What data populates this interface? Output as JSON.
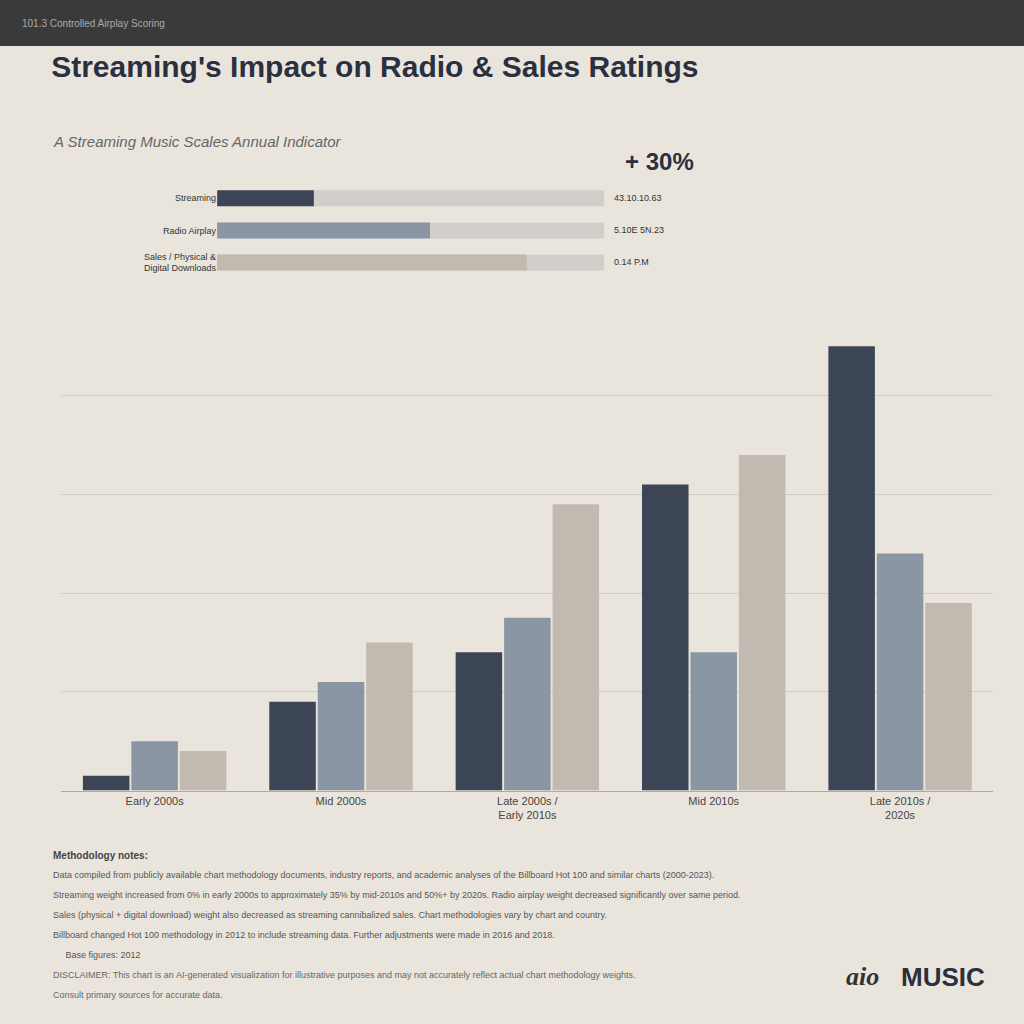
{
  "chart_data": [
    {
      "type": "bar",
      "title": "Streaming's Impact on Radio & Sales Ratings",
      "subtitle": "A Streaming Music Scales Annual Indicator",
      "categories": [
        "Early 2000s",
        "Mid 2000s",
        "Late 2000s /\nEarly 2010s",
        "Mid 2010s",
        "Late 2010s /\n2020s"
      ],
      "series": [
        {
          "name": "Streaming",
          "color": "#3C4556",
          "values": [
            3,
            18,
            28,
            62,
            90
          ]
        },
        {
          "name": "Radio Airplay",
          "color": "#8A96A4",
          "values": [
            10,
            22,
            35,
            28,
            48
          ]
        },
        {
          "name": "Sales",
          "color": "#C2BAB0",
          "values": [
            8,
            30,
            58,
            68,
            38
          ]
        }
      ],
      "ylim": [
        0,
        100
      ],
      "yticks": [
        0,
        20,
        40,
        60,
        80,
        100
      ],
      "grid": true,
      "tick_labels": "x",
      "annotations": [
        "101.3 Controlled Airplay Scoring",
        "+ 30%",
        "Methodology notes:",
        "Data compiled from publicly available chart methodology documents, industry reports, and academic analyses of the Billboard Hot 100 and similar charts (2000-2023).",
        "Streaming weight increased from 0% in early 2000s to approximately 35% by mid-2010s and 50%+ by 2020s. Radio airplay weight decreased significantly over same period.",
        "Sales (physical + digital download) weight also decreased as streaming cannibalized sales. Chart methodologies vary by chart and country.",
        "Billboard changed Hot 100 methodology in 2012 to include streaming data. Further adjustments were made in 2016 and 2018.",
        "     Base figures: 2012",
        "DISCLAIMER: This chart is an AI-generated visualization for illustrative purposes and may not accurately reflect actual chart methodology weights.",
        "Consult primary sources for accurate data.",
        "aio",
        "MUSIC"
      ]
    },
    {
      "type": "bar",
      "orientation": "horizontal",
      "categories": [
        "Streaming",
        "Radio Airplay",
        "Sales / Physical &\nDigital Downloads"
      ],
      "values": [
        0.25,
        0.55,
        0.8
      ],
      "colors": [
        "#3C4556",
        "#8A96A4",
        "#C2BAB0"
      ],
      "xlim": [
        0,
        1
      ],
      "grid": false,
      "tick_labels": "y",
      "annotations": [
        "43.10.10.63",
        "5.10E 5N.23",
        "0.14 P.M"
      ]
    }
  ]
}
